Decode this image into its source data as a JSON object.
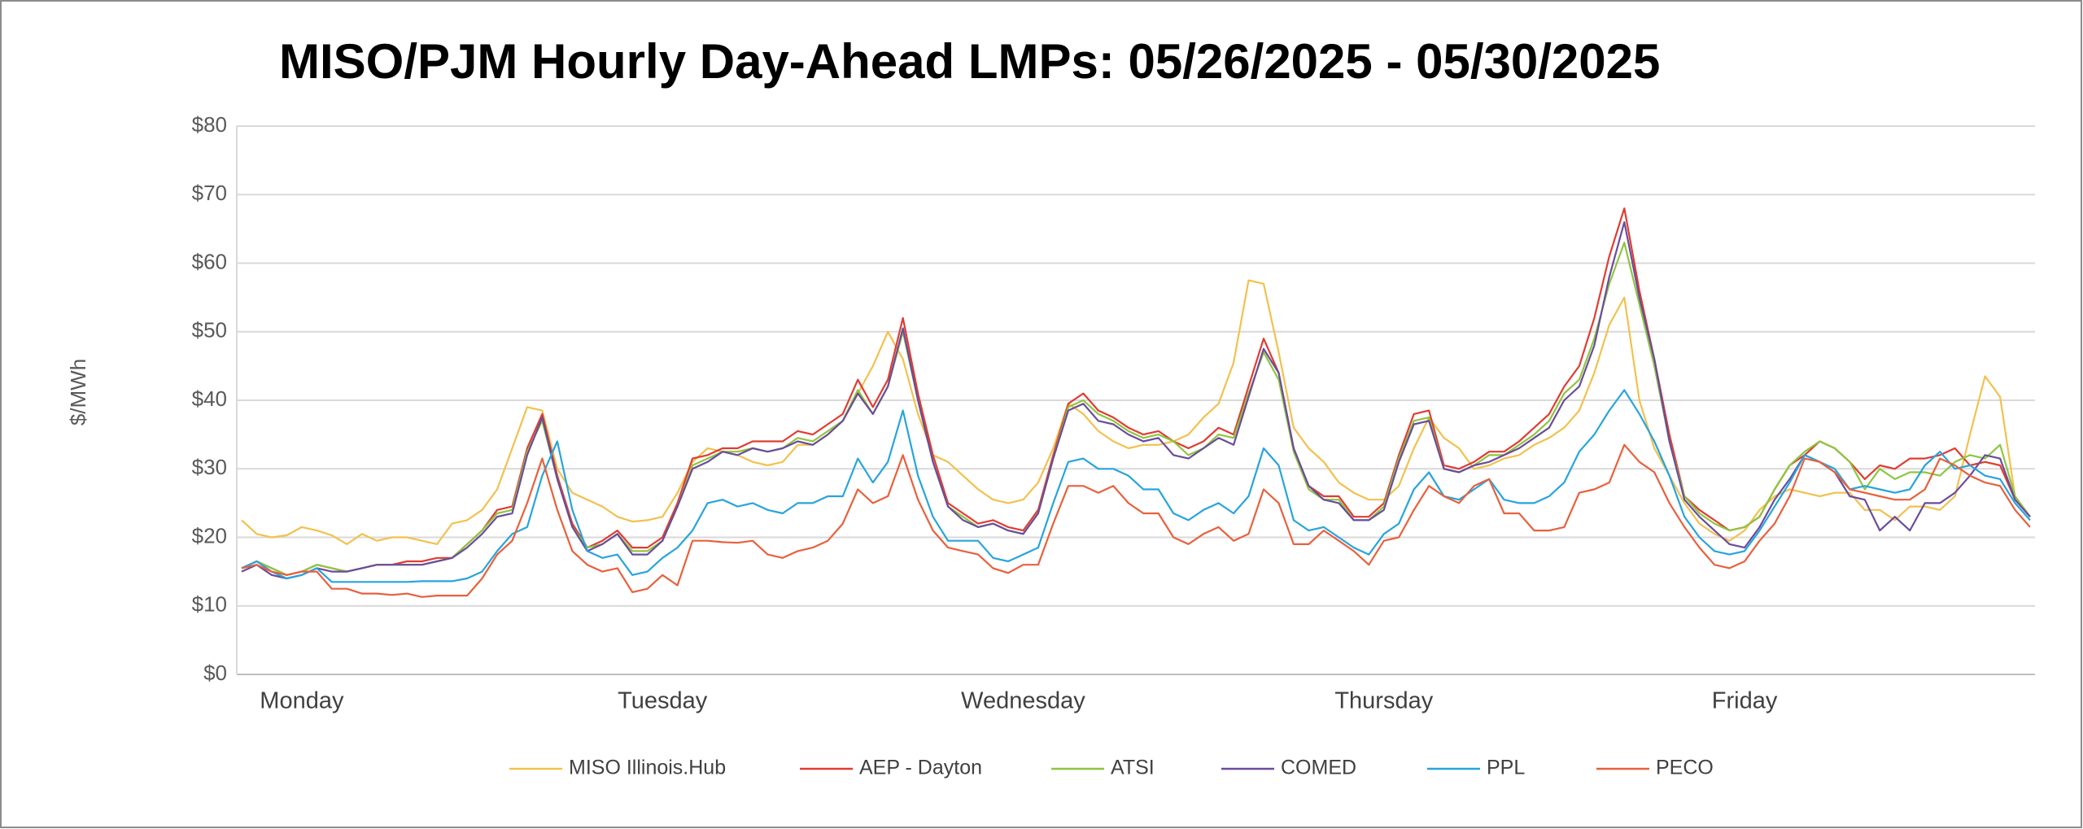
{
  "chart_data": {
    "type": "line",
    "title": "MISO/PJM Hourly Day-Ahead LMPs: 05/26/2025 - 05/30/2025",
    "y_label": "$/MWh",
    "categories": [
      null,
      null,
      null,
      null,
      "Monday",
      null,
      null,
      null,
      null,
      null,
      null,
      null,
      null,
      null,
      null,
      null,
      null,
      null,
      null,
      null,
      null,
      null,
      null,
      null,
      null,
      null,
      null,
      null,
      "Tuesday",
      null,
      null,
      null,
      null,
      null,
      null,
      null,
      null,
      null,
      null,
      null,
      null,
      null,
      null,
      null,
      null,
      null,
      null,
      null,
      null,
      null,
      null,
      null,
      "Wednesday",
      null,
      null,
      null,
      null,
      null,
      null,
      null,
      null,
      null,
      null,
      null,
      null,
      null,
      null,
      null,
      null,
      null,
      null,
      null,
      null,
      null,
      null,
      null,
      "Thursday",
      null,
      null,
      null,
      null,
      null,
      null,
      null,
      null,
      null,
      null,
      null,
      null,
      null,
      null,
      null,
      null,
      null,
      null,
      null,
      null,
      null,
      null,
      null,
      "Friday",
      null,
      null,
      null,
      null,
      null,
      null,
      null,
      null,
      null,
      null,
      null,
      null,
      null,
      null,
      null,
      null,
      null,
      null,
      null
    ],
    "ylim": [
      0,
      80
    ],
    "yticks": [
      {
        "value": 0,
        "label": "$0"
      },
      {
        "value": 10,
        "label": "$10"
      },
      {
        "value": 20,
        "label": "$20"
      },
      {
        "value": 30,
        "label": "$30"
      },
      {
        "value": 40,
        "label": "$40"
      },
      {
        "value": 50,
        "label": "$50"
      },
      {
        "value": 60,
        "label": "$60"
      },
      {
        "value": 70,
        "label": "$70"
      },
      {
        "value": 80,
        "label": "$80"
      }
    ],
    "grid": true,
    "legend": "bottom",
    "series": [
      {
        "name": "MISO Illinois.Hub",
        "color": "#f2c14e",
        "values": [
          22.5,
          20.5,
          20,
          20.3,
          21.5,
          21,
          20.3,
          19,
          20.5,
          19.5,
          20,
          20,
          19.5,
          19,
          22,
          22.5,
          24,
          27,
          33,
          39,
          38.5,
          30,
          26.5,
          25.5,
          24.5,
          23,
          22.3,
          22.5,
          23,
          26.5,
          31,
          33,
          32.5,
          32,
          31,
          30.5,
          31,
          33.5,
          33.5,
          35,
          37,
          41,
          45,
          50,
          46,
          38,
          32,
          31,
          29,
          27,
          25.5,
          25,
          25.5,
          28,
          33,
          39.5,
          38,
          35.5,
          34,
          33,
          33.5,
          33.5,
          34,
          35,
          37.5,
          39.5,
          45.5,
          57.5,
          57,
          47,
          36,
          33,
          31,
          28,
          26.5,
          25.5,
          25.5,
          27.5,
          33,
          37.5,
          34.5,
          33,
          30,
          30.5,
          31.5,
          32,
          33.5,
          34.5,
          36,
          38.5,
          44,
          51,
          55,
          40,
          33,
          29,
          25,
          22,
          20.5,
          19.5,
          21,
          24,
          26,
          27,
          26.5,
          26,
          26.5,
          26.5,
          24,
          24,
          22.5,
          24.5,
          24.5,
          24,
          26,
          35,
          43.5,
          40.5,
          26,
          23
        ]
      },
      {
        "name": "AEP - Dayton",
        "color": "#e03c31",
        "values": [
          15.5,
          16.5,
          15.5,
          14.5,
          15,
          16,
          15.5,
          15,
          15.5,
          16,
          16,
          16.5,
          16.5,
          17,
          17,
          19,
          21,
          24,
          24.5,
          33,
          38,
          29,
          22,
          18.5,
          19.5,
          21,
          18.5,
          18.5,
          20,
          25,
          31.5,
          32,
          33,
          33,
          34,
          34,
          34,
          35.5,
          35,
          36.5,
          38,
          43,
          39,
          43,
          52,
          41,
          32,
          25,
          23.5,
          22,
          22.5,
          21.5,
          21,
          24,
          32,
          39.5,
          41,
          38.5,
          37.5,
          36,
          35,
          35.5,
          34,
          33,
          34,
          36,
          35,
          42,
          49,
          44,
          33,
          27.5,
          26,
          26,
          23,
          23,
          25,
          32,
          38,
          38.5,
          30.5,
          30,
          31,
          32.5,
          32.5,
          34,
          36,
          38,
          42,
          45,
          52,
          61,
          68,
          56,
          46,
          35,
          26,
          24,
          22.5,
          21,
          21.5,
          23,
          27,
          30.5,
          32,
          34,
          33,
          31,
          28.5,
          30.5,
          30,
          31.5,
          31.5,
          32,
          33,
          30.5,
          31,
          30.5,
          25.5,
          23
        ]
      },
      {
        "name": "ATSI",
        "color": "#8dc63f",
        "values": [
          15.5,
          16.5,
          15.5,
          14.5,
          15,
          16,
          15.5,
          15,
          15.5,
          16,
          16,
          16,
          16,
          16.5,
          17,
          19,
          21,
          23.5,
          24,
          32.5,
          37,
          28.5,
          21.5,
          18.5,
          19,
          20.5,
          18,
          18,
          19.5,
          24.5,
          30.5,
          31.5,
          32.5,
          32.5,
          33,
          32.5,
          33,
          34.5,
          34,
          35.5,
          37,
          41.5,
          38,
          42,
          50,
          40,
          31,
          24.5,
          23,
          21.5,
          22,
          21,
          20.5,
          23.5,
          31.5,
          39,
          40,
          38,
          37,
          35.5,
          34.5,
          35,
          34,
          32,
          33,
          35,
          34.5,
          41,
          47,
          43,
          32.5,
          27,
          25.5,
          25.5,
          22.5,
          22.5,
          24.5,
          31.5,
          37,
          37.5,
          30,
          29.5,
          30.5,
          32,
          32,
          33.5,
          35,
          37,
          41,
          43,
          49,
          57,
          63,
          54,
          45,
          34,
          26,
          23.5,
          22,
          21,
          21.5,
          23,
          27,
          30.5,
          32.5,
          34,
          33,
          31,
          27,
          30,
          28.5,
          29.5,
          29.5,
          29,
          31,
          32,
          31.5,
          33.5,
          26,
          23
        ]
      },
      {
        "name": "COMED",
        "color": "#6a4c9c",
        "values": [
          15,
          16,
          14.5,
          14,
          14.5,
          15.5,
          15,
          15,
          15.5,
          16,
          16,
          16,
          16,
          16.5,
          17,
          18.5,
          20.5,
          23,
          23.5,
          32,
          37.5,
          28.5,
          21.5,
          18,
          19,
          20.5,
          17.5,
          17.5,
          19.5,
          24.5,
          30,
          31,
          32.5,
          32,
          33,
          32.5,
          33,
          34,
          33.5,
          35,
          37,
          41,
          38,
          42,
          50.5,
          40,
          31,
          24.5,
          22.5,
          21.5,
          22,
          21,
          20.5,
          23.5,
          31.5,
          38.5,
          39.5,
          37,
          36.5,
          35,
          34,
          34.5,
          32,
          31.5,
          33,
          34.5,
          33.5,
          40.5,
          47.5,
          44,
          33,
          27.5,
          25.5,
          25,
          22.5,
          22.5,
          24,
          31,
          36.5,
          37,
          30,
          29.5,
          30.5,
          31,
          32,
          33,
          34.5,
          36,
          40,
          42,
          48,
          58,
          66,
          55,
          46,
          34,
          25.5,
          23,
          21,
          19,
          18.5,
          21.5,
          25.5,
          28.5,
          32,
          31,
          29.5,
          26,
          25.5,
          21,
          23,
          21,
          25,
          25,
          26.5,
          29,
          32,
          31.5,
          25.5,
          23
        ]
      },
      {
        "name": "PPL",
        "color": "#27a4dd",
        "values": [
          15.5,
          16.5,
          15,
          14,
          14.5,
          15.5,
          13.5,
          13.5,
          13.5,
          13.5,
          13.5,
          13.5,
          13.6,
          13.6,
          13.6,
          14,
          15,
          18,
          20.5,
          21.5,
          29,
          34,
          24,
          18,
          17,
          17.5,
          14.5,
          15,
          17,
          18.5,
          21,
          25,
          25.5,
          24.5,
          25,
          24,
          23.5,
          25,
          25,
          26,
          26,
          31.5,
          28,
          31,
          38.5,
          29,
          23,
          19.5,
          19.5,
          19.5,
          17,
          16.5,
          17.5,
          18.5,
          25,
          31,
          31.5,
          30,
          30,
          29,
          27,
          27,
          23.5,
          22.5,
          24,
          25,
          23.5,
          26,
          33,
          30.5,
          22.5,
          21,
          21.5,
          20,
          18.5,
          17.5,
          20.5,
          22,
          27,
          29.5,
          26,
          25.5,
          27,
          28.5,
          25.5,
          25,
          25,
          26,
          28,
          32.5,
          35,
          38.5,
          41.5,
          38,
          34,
          29,
          23,
          20,
          18,
          17.5,
          18,
          21,
          24.5,
          28,
          32,
          31,
          30,
          27,
          27.5,
          27,
          26.5,
          27,
          30.5,
          32.5,
          30,
          30.5,
          29,
          28.5,
          25,
          22.5
        ]
      },
      {
        "name": "PECO",
        "color": "#e8603c",
        "values": [
          15.5,
          16,
          15,
          14.5,
          15,
          15,
          12.5,
          12.5,
          11.8,
          11.8,
          11.6,
          11.8,
          11.3,
          11.5,
          11.5,
          11.5,
          14,
          17.5,
          19.5,
          25,
          31.5,
          24,
          18,
          16,
          15,
          15.5,
          12,
          12.5,
          14.5,
          13,
          19.5,
          19.5,
          19.3,
          19.2,
          19.5,
          17.5,
          17,
          18,
          18.5,
          19.5,
          22,
          27,
          25,
          26,
          32,
          25.5,
          21,
          18.5,
          18,
          17.5,
          15.5,
          14.8,
          16,
          16,
          22,
          27.5,
          27.5,
          26.5,
          27.5,
          25,
          23.5,
          23.5,
          20,
          19,
          20.5,
          21.5,
          19.5,
          20.5,
          27,
          25,
          19,
          19,
          21,
          19.5,
          18,
          16,
          19.5,
          20,
          24,
          27.5,
          26,
          25,
          27.5,
          28.5,
          23.5,
          23.5,
          21,
          21,
          21.5,
          26.5,
          27,
          28,
          33.5,
          31,
          29.5,
          25,
          21.5,
          18.5,
          16,
          15.5,
          16.5,
          19.5,
          22,
          26,
          31.5,
          31,
          29.5,
          27,
          26.5,
          26,
          25.5,
          25.5,
          27,
          31.5,
          30.5,
          29,
          28,
          27.5,
          24,
          21.5
        ]
      }
    ]
  }
}
